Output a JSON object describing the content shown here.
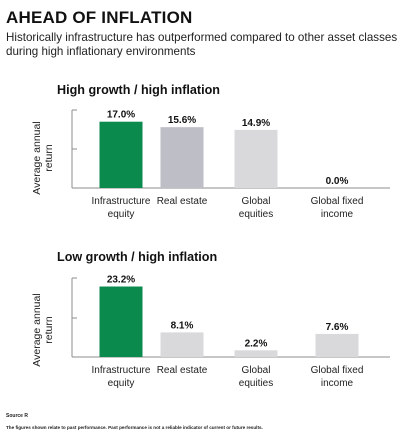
{
  "title": "AHEAD OF INFLATION",
  "subtitle": "Historically infrastructure has outperformed compared to other asset classes during high inflationary environments",
  "colors": {
    "highlight": "#0b8a4e",
    "grey_dark": "#bebec6",
    "grey_light": "#d9d9dc",
    "axis": "#8c8c8c"
  },
  "chart_data": [
    {
      "type": "bar",
      "title": "High growth / high inflation",
      "ylabel": "Average annual return",
      "categories": [
        [
          "Infrastructure",
          "equity"
        ],
        [
          "Real estate"
        ],
        [
          "Global",
          "equities"
        ],
        [
          "Global fixed",
          "income"
        ]
      ],
      "values": [
        17.0,
        15.6,
        14.9,
        0.0
      ],
      "value_labels": [
        "17.0%",
        "15.6%",
        "14.9%",
        "0.0%"
      ],
      "bar_colors": [
        "#0b8a4e",
        "#bebec6",
        "#d9d9dc",
        "#d9d9dc"
      ],
      "ylim": [
        0,
        20
      ]
    },
    {
      "type": "bar",
      "title": "Low growth / high inflation",
      "ylabel": "Average annual return",
      "categories": [
        [
          "Infrastructure",
          "equity"
        ],
        [
          "Real estate"
        ],
        [
          "Global",
          "equities"
        ],
        [
          "Global fixed",
          "income"
        ]
      ],
      "values": [
        23.2,
        8.1,
        2.2,
        7.6
      ],
      "value_labels": [
        "23.2%",
        "8.1%",
        "2.2%",
        "7.6%"
      ],
      "bar_colors": [
        "#0b8a4e",
        "#d9d9dc",
        "#d9d9dc",
        "#d9d9dc"
      ],
      "ylim": [
        0,
        26
      ]
    }
  ],
  "source": "Source R",
  "footnote": "The figures shown relate to past performance. Past performance is not a reliable indicator of current or future results."
}
